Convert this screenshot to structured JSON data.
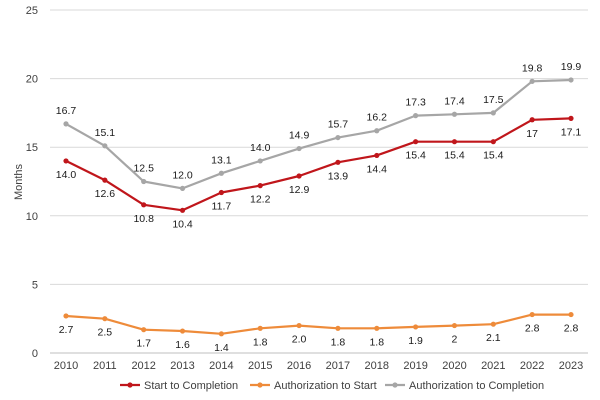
{
  "chart_data": {
    "type": "line",
    "title": "",
    "xlabel": "",
    "ylabel": "Months",
    "ylim": [
      0,
      25
    ],
    "yticks": [
      "0",
      "5",
      "10",
      "15",
      "20",
      "25"
    ],
    "grid": true,
    "legend_position": "bottom",
    "categories": [
      "2010",
      "2011",
      "2012",
      "2013",
      "2014",
      "2015",
      "2016",
      "2017",
      "2018",
      "2019",
      "2020",
      "2021",
      "2022",
      "2023"
    ],
    "series": [
      {
        "name": "Start to Completion",
        "color": "#c0161b",
        "label_position": "below",
        "values": [
          14.0,
          12.6,
          10.8,
          10.4,
          11.7,
          12.2,
          12.9,
          13.9,
          14.4,
          15.4,
          15.4,
          15.4,
          17,
          17.1
        ],
        "labels": [
          "14.0",
          "12.6",
          "10.8",
          "10.4",
          "11.7",
          "12.2",
          "12.9",
          "13.9",
          "14.4",
          "15.4",
          "15.4",
          "15.4",
          "17",
          "17.1"
        ]
      },
      {
        "name": "Authorization to Start",
        "color": "#ee8b3a",
        "label_position": "below",
        "values": [
          2.7,
          2.5,
          1.7,
          1.6,
          1.4,
          1.8,
          2.0,
          1.8,
          1.8,
          1.9,
          2,
          2.1,
          2.8,
          2.8
        ],
        "labels": [
          "2.7",
          "2.5",
          "1.7",
          "1.6",
          "1.4",
          "1.8",
          "2.0",
          "1.8",
          "1.8",
          "1.9",
          "2",
          "2.1",
          "2.8",
          "2.8"
        ]
      },
      {
        "name": "Authorization to Completion",
        "color": "#a6a6a6",
        "label_position": "above",
        "values": [
          16.7,
          15.1,
          12.5,
          12.0,
          13.1,
          14.0,
          14.9,
          15.7,
          16.2,
          17.3,
          17.4,
          17.5,
          19.8,
          19.9
        ],
        "labels": [
          "16.7",
          "15.1",
          "12.5",
          "12.0",
          "13.1",
          "14.0",
          "14.9",
          "15.7",
          "16.2",
          "17.3",
          "17.4",
          "17.5",
          "19.8",
          "19.9"
        ]
      }
    ]
  }
}
